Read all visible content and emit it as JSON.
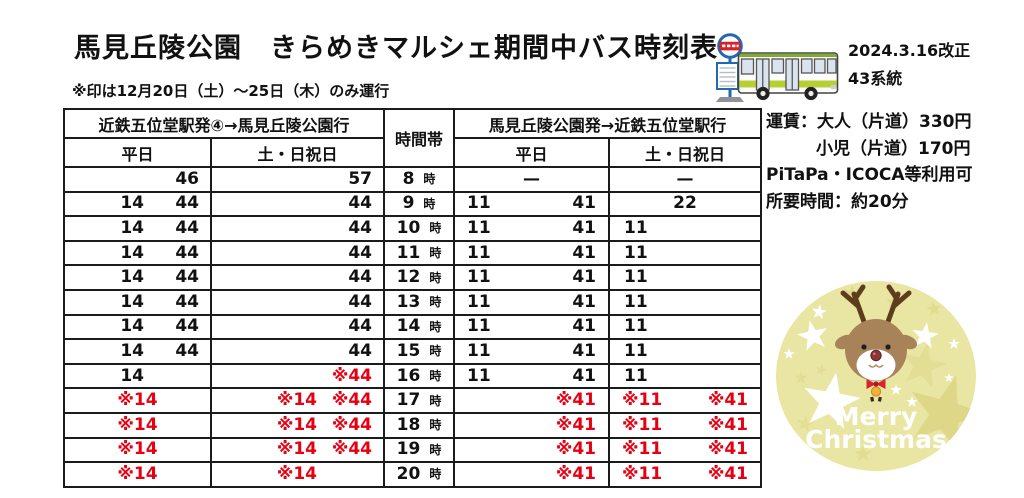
{
  "header": {
    "title": "馬見丘陵公園　きらめきマルシェ期間中バス時刻表",
    "note": "※印は12月20日（土）～25日（木）のみ運行",
    "revision": "2024.3.16改正",
    "route": "43系統"
  },
  "info": {
    "fare_adult": "運賃：大人（片道）330円",
    "fare_child": "小児（片道）170円",
    "ic_cards": "PiTaPa・ICOCA等利用可",
    "duration": "所要時間：約20分"
  },
  "sticker": {
    "line1": "Merry",
    "line2": "Christmas"
  },
  "colors": {
    "accent_red": "#e60012",
    "sticker_bg": "#e9e6a3",
    "bus_green": "#b7cf33",
    "sign_blue": "#2468b2"
  },
  "table": {
    "head": {
      "outbound": "近鉄五位堂駅発④→馬見丘陵公園行",
      "time_band": "時間帯",
      "inbound": "馬見丘陵公園発→近鉄五位堂駅行",
      "weekday": "平日",
      "weekend": "土・日祝日"
    },
    "hour_suffix": "時",
    "rows": [
      {
        "hour": "8",
        "c1": {
          "a": "",
          "b": "46",
          "align": "r",
          "red": false
        },
        "c2": {
          "a": "",
          "b": "57",
          "align": "r",
          "red": false
        },
        "c4": {
          "a": "—",
          "b": "",
          "align": "c",
          "red": false
        },
        "c5": {
          "a": "—",
          "b": "",
          "align": "c",
          "red": false
        }
      },
      {
        "hour": "9",
        "c1": {
          "a": "14",
          "b": "44",
          "align": "r",
          "red": false
        },
        "c2": {
          "a": "",
          "b": "44",
          "align": "r",
          "red": false
        },
        "c4": {
          "a": "11",
          "b": "41",
          "align": "sb",
          "red": false
        },
        "c5": {
          "a": "22",
          "b": "",
          "align": "c",
          "red": false
        }
      },
      {
        "hour": "10",
        "c1": {
          "a": "14",
          "b": "44",
          "align": "r",
          "red": false
        },
        "c2": {
          "a": "",
          "b": "44",
          "align": "r",
          "red": false
        },
        "c4": {
          "a": "11",
          "b": "41",
          "align": "sb",
          "red": false
        },
        "c5": {
          "a": "11",
          "b": "",
          "align": "l",
          "red": false
        }
      },
      {
        "hour": "11",
        "c1": {
          "a": "14",
          "b": "44",
          "align": "r",
          "red": false
        },
        "c2": {
          "a": "",
          "b": "44",
          "align": "r",
          "red": false
        },
        "c4": {
          "a": "11",
          "b": "41",
          "align": "sb",
          "red": false
        },
        "c5": {
          "a": "11",
          "b": "",
          "align": "l",
          "red": false
        }
      },
      {
        "hour": "12",
        "c1": {
          "a": "14",
          "b": "44",
          "align": "r",
          "red": false
        },
        "c2": {
          "a": "",
          "b": "44",
          "align": "r",
          "red": false
        },
        "c4": {
          "a": "11",
          "b": "41",
          "align": "sb",
          "red": false
        },
        "c5": {
          "a": "11",
          "b": "",
          "align": "l",
          "red": false
        }
      },
      {
        "hour": "13",
        "c1": {
          "a": "14",
          "b": "44",
          "align": "r",
          "red": false
        },
        "c2": {
          "a": "",
          "b": "44",
          "align": "r",
          "red": false
        },
        "c4": {
          "a": "11",
          "b": "41",
          "align": "sb",
          "red": false
        },
        "c5": {
          "a": "11",
          "b": "",
          "align": "l",
          "red": false
        }
      },
      {
        "hour": "14",
        "c1": {
          "a": "14",
          "b": "44",
          "align": "r",
          "red": false
        },
        "c2": {
          "a": "",
          "b": "44",
          "align": "r",
          "red": false
        },
        "c4": {
          "a": "11",
          "b": "41",
          "align": "sb",
          "red": false
        },
        "c5": {
          "a": "11",
          "b": "",
          "align": "l",
          "red": false
        }
      },
      {
        "hour": "15",
        "c1": {
          "a": "14",
          "b": "44",
          "align": "r",
          "red": false
        },
        "c2": {
          "a": "",
          "b": "44",
          "align": "r",
          "red": false
        },
        "c4": {
          "a": "11",
          "b": "41",
          "align": "sb",
          "red": false
        },
        "c5": {
          "a": "11",
          "b": "",
          "align": "l",
          "red": false
        }
      },
      {
        "hour": "16",
        "c1": {
          "a": "14",
          "b": "",
          "align": "r",
          "red": false
        },
        "c2": {
          "a": "",
          "b": "※44",
          "align": "r",
          "red": true
        },
        "c4": {
          "a": "11",
          "b": "41",
          "align": "sb",
          "red": false
        },
        "c5": {
          "a": "11",
          "b": "",
          "align": "l",
          "red": false
        }
      },
      {
        "hour": "17",
        "c1": {
          "a": "※14",
          "b": "",
          "align": "c",
          "red": true
        },
        "c2": {
          "a": "※14",
          "b": "※44",
          "align": "r",
          "red": true
        },
        "c4": {
          "a": "",
          "b": "※41",
          "align": "sb",
          "red": true
        },
        "c5": {
          "a": "※11",
          "b": "※41",
          "align": "sb",
          "red": true
        }
      },
      {
        "hour": "18",
        "c1": {
          "a": "※14",
          "b": "",
          "align": "c",
          "red": true
        },
        "c2": {
          "a": "※14",
          "b": "※44",
          "align": "r",
          "red": true
        },
        "c4": {
          "a": "",
          "b": "※41",
          "align": "sb",
          "red": true
        },
        "c5": {
          "a": "※11",
          "b": "※41",
          "align": "sb",
          "red": true
        }
      },
      {
        "hour": "19",
        "c1": {
          "a": "※14",
          "b": "",
          "align": "c",
          "red": true
        },
        "c2": {
          "a": "※14",
          "b": "※44",
          "align": "r",
          "red": true
        },
        "c4": {
          "a": "",
          "b": "※41",
          "align": "sb",
          "red": true
        },
        "c5": {
          "a": "※11",
          "b": "※41",
          "align": "sb",
          "red": true
        }
      },
      {
        "hour": "20",
        "c1": {
          "a": "※14",
          "b": "",
          "align": "c",
          "red": true
        },
        "c2": {
          "a": "※14",
          "b": "",
          "align": "r",
          "red": true
        },
        "c4": {
          "a": "",
          "b": "※41",
          "align": "sb",
          "red": true
        },
        "c5": {
          "a": "※11",
          "b": "※41",
          "align": "sb",
          "red": true
        }
      }
    ]
  }
}
